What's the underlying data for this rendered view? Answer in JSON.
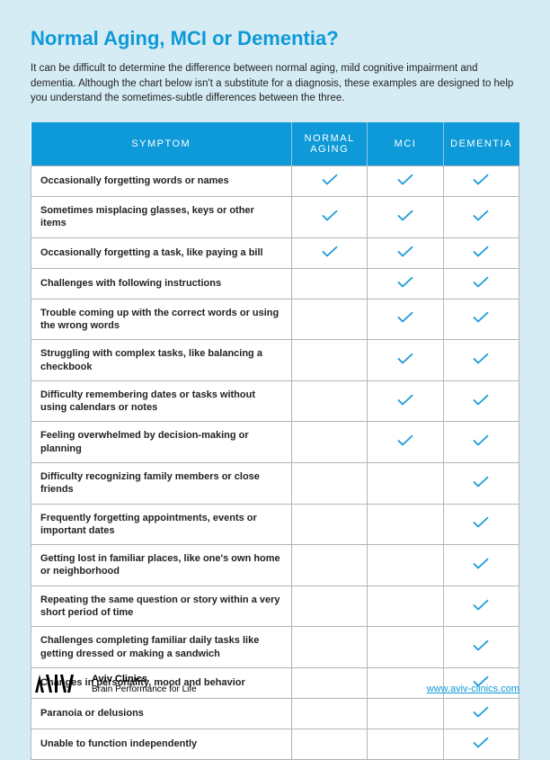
{
  "title": "Normal Aging, MCI or Dementia?",
  "intro": "It can be difficult to determine the difference between normal aging, mild cognitive impairment and dementia. Although the chart below isn't a substitute for a diagnosis, these examples are designed to help you understand the sometimes-subtle differences between the three.",
  "columns": [
    "SYMPTOM",
    "NORMAL AGING",
    "MCI",
    "DEMENTIA"
  ],
  "rows": [
    {
      "symptom": "Occasionally forgetting words or names",
      "normal": true,
      "mci": true,
      "dementia": true
    },
    {
      "symptom": "Sometimes misplacing glasses, keys or other items",
      "normal": true,
      "mci": true,
      "dementia": true
    },
    {
      "symptom": "Occasionally forgetting a task, like paying a bill",
      "normal": true,
      "mci": true,
      "dementia": true
    },
    {
      "symptom": "Challenges with following instructions",
      "normal": false,
      "mci": true,
      "dementia": true
    },
    {
      "symptom": "Trouble coming up with the correct words or using the wrong words",
      "normal": false,
      "mci": true,
      "dementia": true
    },
    {
      "symptom": "Struggling with complex tasks, like balancing a checkbook",
      "normal": false,
      "mci": true,
      "dementia": true
    },
    {
      "symptom": "Difficulty remembering dates or tasks without using calendars or notes",
      "normal": false,
      "mci": true,
      "dementia": true
    },
    {
      "symptom": "Feeling overwhelmed by decision-making or planning",
      "normal": false,
      "mci": true,
      "dementia": true
    },
    {
      "symptom": "Difficulty recognizing family members or close friends",
      "normal": false,
      "mci": false,
      "dementia": true
    },
    {
      "symptom": "Frequently forgetting appointments, events or important dates",
      "normal": false,
      "mci": false,
      "dementia": true
    },
    {
      "symptom": "Getting lost in familiar places, like one's own home or neighborhood",
      "normal": false,
      "mci": false,
      "dementia": true
    },
    {
      "symptom": "Repeating the same question or story within a very short period of time",
      "normal": false,
      "mci": false,
      "dementia": true
    },
    {
      "symptom": "Challenges completing familiar daily tasks like getting dressed or making a sandwich",
      "normal": false,
      "mci": false,
      "dementia": true
    },
    {
      "symptom": "Changes in personality, mood and behavior",
      "normal": false,
      "mci": false,
      "dementia": true
    },
    {
      "symptom": "Paranoia or delusions",
      "normal": false,
      "mci": false,
      "dementia": true
    },
    {
      "symptom": "Unable to function independently",
      "normal": false,
      "mci": false,
      "dementia": true
    }
  ],
  "brand": {
    "name": "Aviv Clinics",
    "tagline": "Brain Performance for Life"
  },
  "url": "www.aviv-clinics.com",
  "colors": {
    "accent": "#0e99d8",
    "page_bg": "#d6ecf5",
    "table_bg": "#ffffff",
    "border": "#b0b5b9",
    "header_divider": "#8fc9e6",
    "text": "#222222"
  },
  "check_stroke": "#1e9cd7"
}
